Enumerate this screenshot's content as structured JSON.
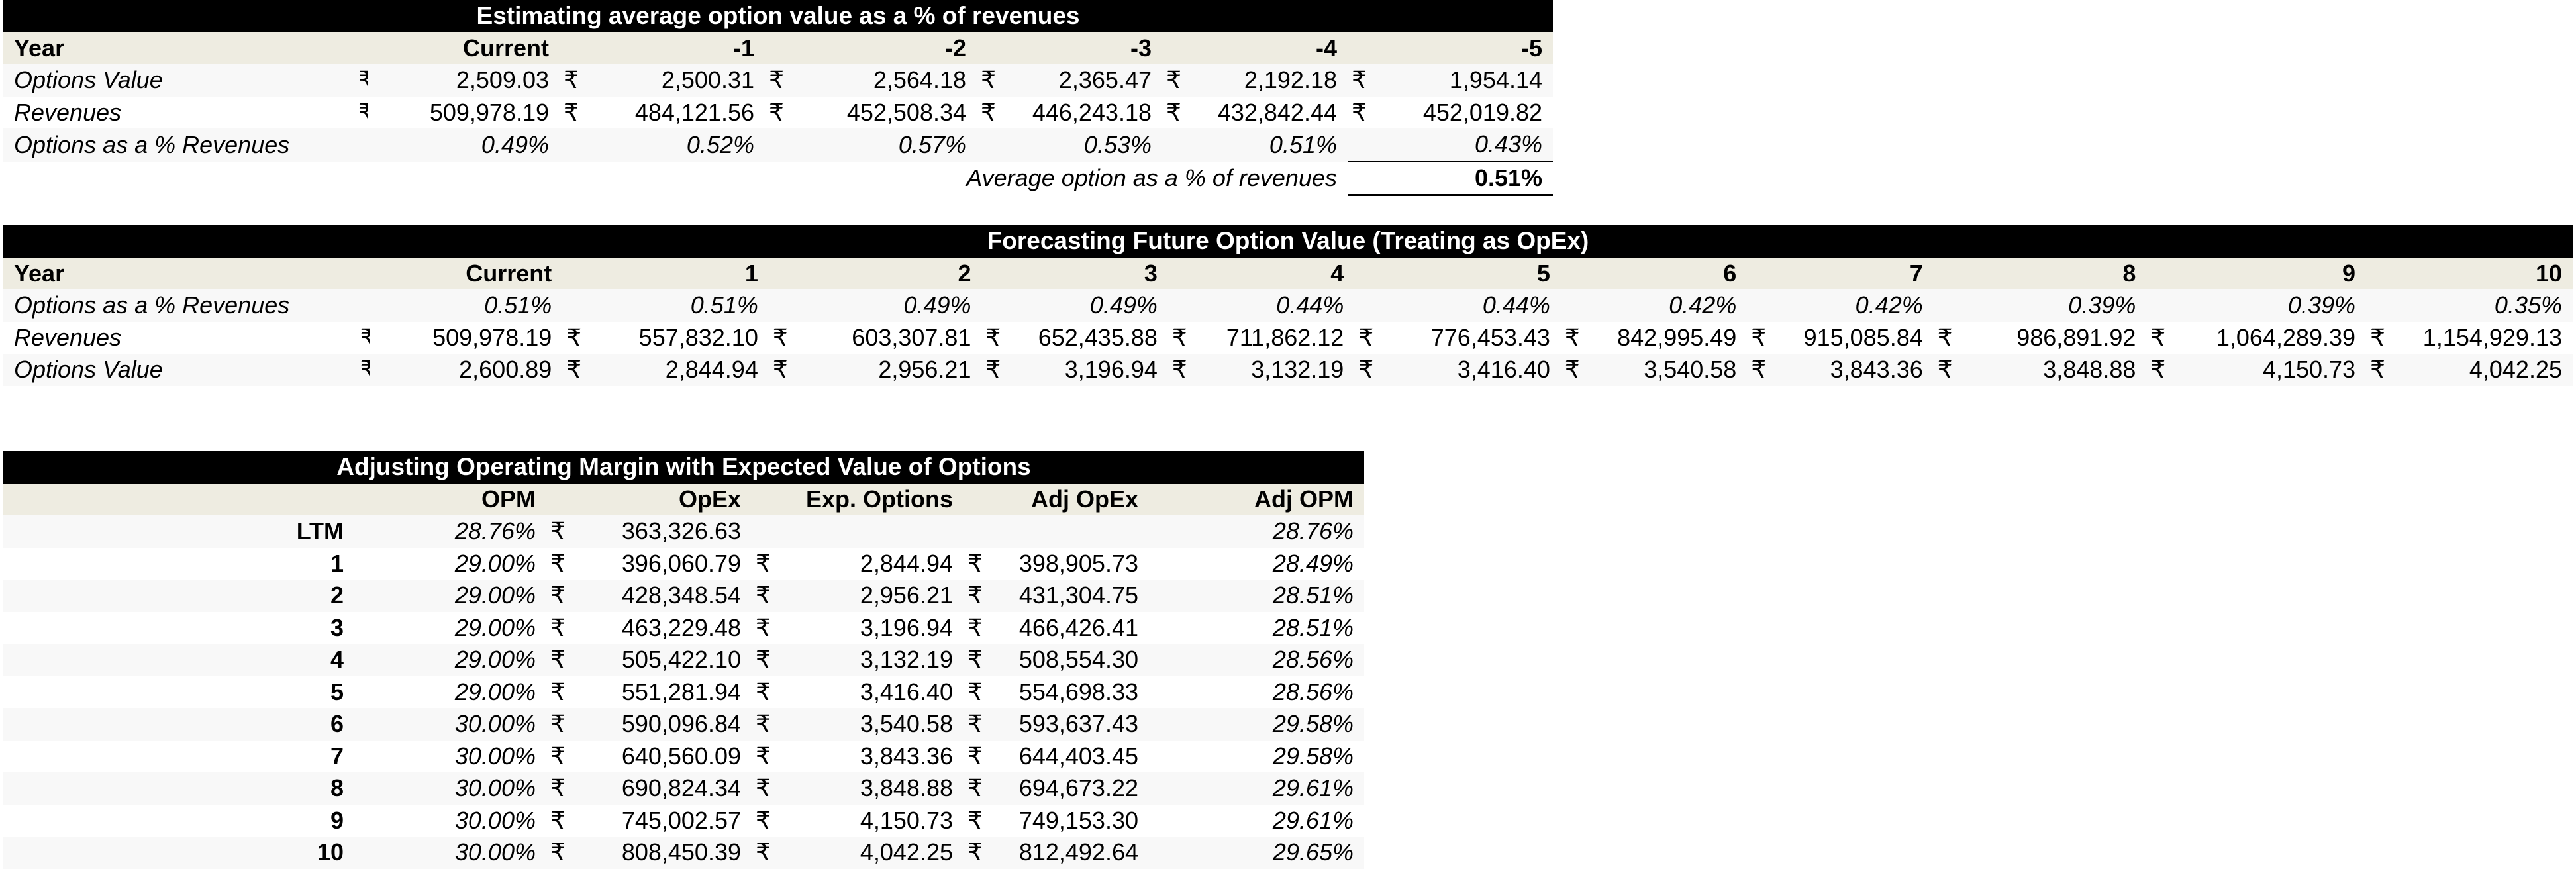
{
  "currency": "₹",
  "t1": {
    "title": "Estimating average option value as a % of revenues",
    "header_label": "Year",
    "columns": [
      "Current",
      "-1",
      "-2",
      "-3",
      "-4",
      "-5"
    ],
    "rows": [
      {
        "label": "Options Value",
        "values": [
          "2,509.03",
          "2,500.31",
          "2,564.18",
          "2,365.47",
          "2,192.18",
          "1,954.14"
        ]
      },
      {
        "label": "Revenues",
        "values": [
          "509,978.19",
          "484,121.56",
          "452,508.34",
          "446,243.18",
          "432,842.44",
          "452,019.82"
        ]
      }
    ],
    "pct_row": {
      "label": "Options as a % Revenues",
      "values": [
        "0.49%",
        "0.52%",
        "0.57%",
        "0.53%",
        "0.51%",
        "0.43%"
      ]
    },
    "avg_label": "Average option as a % of revenues",
    "avg_value": "0.51%"
  },
  "t2": {
    "title": "Forecasting Future Option Value (Treating as OpEx)",
    "header_label": "Year",
    "columns": [
      "Current",
      "1",
      "2",
      "3",
      "4",
      "5",
      "6",
      "7",
      "8",
      "9",
      "10"
    ],
    "pct_row": {
      "label": "Options as a % Revenues",
      "values": [
        "0.51%",
        "0.51%",
        "0.49%",
        "0.49%",
        "0.44%",
        "0.44%",
        "0.42%",
        "0.42%",
        "0.39%",
        "0.39%",
        "0.35%"
      ]
    },
    "rows": [
      {
        "label": "Revenues",
        "values": [
          "509,978.19",
          "557,832.10",
          "603,307.81",
          "652,435.88",
          "711,862.12",
          "776,453.43",
          "842,995.49",
          "915,085.84",
          "986,891.92",
          "1,064,289.39",
          "1,154,929.13"
        ]
      },
      {
        "label": "Options Value",
        "values": [
          "2,600.89",
          "2,844.94",
          "2,956.21",
          "3,196.94",
          "3,132.19",
          "3,416.40",
          "3,540.58",
          "3,843.36",
          "3,848.88",
          "4,150.73",
          "4,042.25"
        ]
      }
    ]
  },
  "t3": {
    "title": "Adjusting Operating Margin with Expected Value of Options",
    "headers": [
      "OPM",
      "OpEx",
      "Exp. Options",
      "Adj OpEx",
      "Adj OPM"
    ],
    "rows": [
      {
        "year": "LTM",
        "opm": "28.76%",
        "opex": "363,326.63",
        "exp": "",
        "adj_opex": "",
        "adj_opm": "28.76%"
      },
      {
        "year": "1",
        "opm": "29.00%",
        "opex": "396,060.79",
        "exp": "2,844.94",
        "adj_opex": "398,905.73",
        "adj_opm": "28.49%"
      },
      {
        "year": "2",
        "opm": "29.00%",
        "opex": "428,348.54",
        "exp": "2,956.21",
        "adj_opex": "431,304.75",
        "adj_opm": "28.51%"
      },
      {
        "year": "3",
        "opm": "29.00%",
        "opex": "463,229.48",
        "exp": "3,196.94",
        "adj_opex": "466,426.41",
        "adj_opm": "28.51%"
      },
      {
        "year": "4",
        "opm": "29.00%",
        "opex": "505,422.10",
        "exp": "3,132.19",
        "adj_opex": "508,554.30",
        "adj_opm": "28.56%"
      },
      {
        "year": "5",
        "opm": "29.00%",
        "opex": "551,281.94",
        "exp": "3,416.40",
        "adj_opex": "554,698.33",
        "adj_opm": "28.56%"
      },
      {
        "year": "6",
        "opm": "30.00%",
        "opex": "590,096.84",
        "exp": "3,540.58",
        "adj_opex": "593,637.43",
        "adj_opm": "29.58%"
      },
      {
        "year": "7",
        "opm": "30.00%",
        "opex": "640,560.09",
        "exp": "3,843.36",
        "adj_opex": "644,403.45",
        "adj_opm": "29.58%"
      },
      {
        "year": "8",
        "opm": "30.00%",
        "opex": "690,824.34",
        "exp": "3,848.88",
        "adj_opex": "694,673.22",
        "adj_opm": "29.61%"
      },
      {
        "year": "9",
        "opm": "30.00%",
        "opex": "745,002.57",
        "exp": "4,150.73",
        "adj_opex": "749,153.30",
        "adj_opm": "29.61%"
      },
      {
        "year": "10",
        "opm": "30.00%",
        "opex": "808,450.39",
        "exp": "4,042.25",
        "adj_opex": "812,492.64",
        "adj_opm": "29.65%"
      }
    ]
  }
}
